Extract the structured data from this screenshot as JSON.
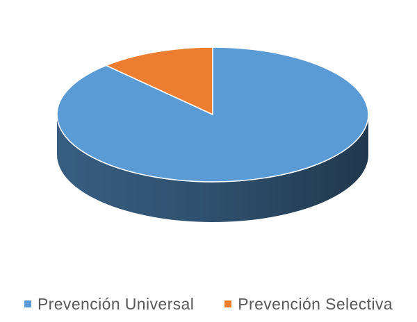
{
  "chart_data": {
    "type": "pie",
    "style": "3d",
    "title": "",
    "legend_position": "bottom",
    "series": [
      {
        "name": "Prevención Universal",
        "value": 88,
        "color": "#5B9BD5"
      },
      {
        "name": "Prevención Selectiva",
        "value": 12,
        "color": "#ED7D31"
      }
    ]
  }
}
